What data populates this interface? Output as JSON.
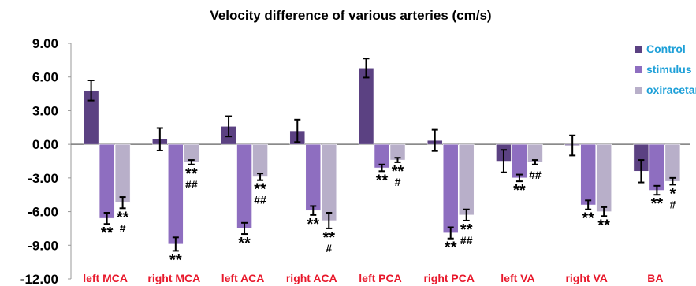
{
  "chart_data": {
    "type": "bar",
    "title": "Velocity difference of various arteries (cm/s)",
    "xlabel": "",
    "ylabel": "",
    "ylim": [
      -12,
      9
    ],
    "yticks": [
      "9.00",
      "6.00",
      "3.00",
      "0.00",
      "-3.00",
      "-6.00",
      "-9.00",
      "-12.00"
    ],
    "categories": [
      "left MCA",
      "right MCA",
      "left ACA",
      "right ACA",
      "left PCA",
      "right PCA",
      "left VA",
      "right VA",
      "BA"
    ],
    "series": [
      {
        "name": "Control",
        "color": "#5b4182",
        "values": [
          4.8,
          0.45,
          1.6,
          1.2,
          6.8,
          0.35,
          -1.5,
          -0.1,
          -2.4
        ],
        "errors": [
          0.9,
          1.0,
          0.9,
          1.0,
          0.85,
          0.95,
          1.0,
          0.9,
          1.0
        ]
      },
      {
        "name": "stimulus",
        "color": "#8e6ec0",
        "values": [
          -6.6,
          -8.9,
          -7.5,
          -5.9,
          -2.1,
          -7.9,
          -3.0,
          -5.4,
          -4.1
        ],
        "errors": [
          0.5,
          0.6,
          0.5,
          0.4,
          0.3,
          0.5,
          0.3,
          0.4,
          0.4
        ]
      },
      {
        "name": "oxiracetam",
        "color": "#b8afc9",
        "values": [
          -5.2,
          -1.6,
          -2.9,
          -6.8,
          -1.4,
          -6.3,
          -1.6,
          -6.0,
          -3.3
        ],
        "errors": [
          0.5,
          0.2,
          0.3,
          0.7,
          0.2,
          0.5,
          0.2,
          0.4,
          0.3
        ]
      }
    ],
    "annotations": [
      {
        "category": 0,
        "series": 1,
        "lines": [
          "**"
        ]
      },
      {
        "category": 0,
        "series": 2,
        "lines": [
          "**",
          "#"
        ]
      },
      {
        "category": 1,
        "series": 1,
        "lines": [
          "**"
        ]
      },
      {
        "category": 1,
        "series": 2,
        "lines": [
          "**",
          "##"
        ]
      },
      {
        "category": 2,
        "series": 1,
        "lines": [
          "**"
        ]
      },
      {
        "category": 2,
        "series": 2,
        "lines": [
          "**",
          "##"
        ]
      },
      {
        "category": 3,
        "series": 1,
        "lines": [
          "**"
        ]
      },
      {
        "category": 3,
        "series": 2,
        "lines": [
          "**",
          "#"
        ]
      },
      {
        "category": 4,
        "series": 1,
        "lines": [
          "**"
        ]
      },
      {
        "category": 4,
        "series": 2,
        "lines": [
          "**",
          "#"
        ]
      },
      {
        "category": 5,
        "series": 1,
        "lines": [
          "**"
        ]
      },
      {
        "category": 5,
        "series": 2,
        "lines": [
          "**",
          "##"
        ]
      },
      {
        "category": 6,
        "series": 1,
        "lines": [
          "**"
        ]
      },
      {
        "category": 6,
        "series": 2,
        "lines": [
          "##"
        ]
      },
      {
        "category": 7,
        "series": 1,
        "lines": [
          "**"
        ]
      },
      {
        "category": 7,
        "series": 2,
        "lines": [
          "**"
        ]
      },
      {
        "category": 8,
        "series": 1,
        "lines": [
          "**"
        ]
      },
      {
        "category": 8,
        "series": 2,
        "lines": [
          "*",
          "#"
        ]
      }
    ],
    "category_label_color": "#e8192c",
    "legend_text_color": "#1ea0d8",
    "legend_position": "top-right",
    "grid": false
  }
}
